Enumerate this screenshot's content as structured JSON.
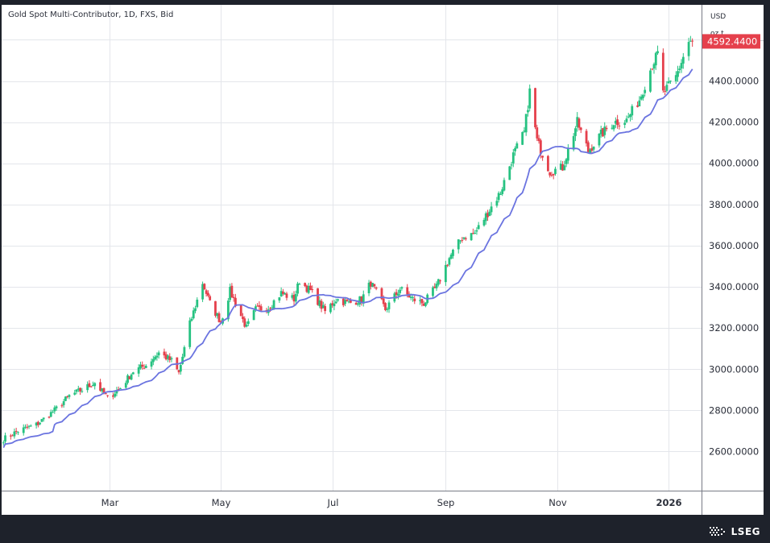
{
  "chart_data": {
    "type": "candlestick",
    "title": "Gold Spot Multi-Contributor, 1D, FXS, Bid",
    "currency": "USD",
    "unit": "oz t",
    "last_price": "4592.4400",
    "last_value": 4592.44,
    "y_ticks": [
      {
        "value": 2600,
        "label": "2600.0000"
      },
      {
        "value": 2800,
        "label": "2800.0000"
      },
      {
        "value": 3000,
        "label": "3000.0000"
      },
      {
        "value": 3200,
        "label": "3200.0000"
      },
      {
        "value": 3400,
        "label": "3400.0000"
      },
      {
        "value": 3600,
        "label": "3600.0000"
      },
      {
        "value": 3800,
        "label": "3800.0000"
      },
      {
        "value": 4000,
        "label": "4000.0000"
      },
      {
        "value": 4200,
        "label": "4200.0000"
      },
      {
        "value": 4400,
        "label": "4400.0000"
      }
    ],
    "ylim": [
      2410,
      4770
    ],
    "x_range": [
      "2025-01-01",
      "2026-01-19"
    ],
    "x_ticks": [
      {
        "date": "2025-03-01",
        "label": "Mar"
      },
      {
        "date": "2025-05-01",
        "label": "May"
      },
      {
        "date": "2025-07-01",
        "label": "Jul"
      },
      {
        "date": "2025-09-01",
        "label": "Sep"
      },
      {
        "date": "2025-11-01",
        "label": "Nov"
      },
      {
        "date": "2026-01-01",
        "label": "2026"
      }
    ],
    "price_path": [
      [
        "2025-01-02",
        2660
      ],
      [
        "2025-01-10",
        2700
      ],
      [
        "2025-01-20",
        2730
      ],
      [
        "2025-01-30",
        2800
      ],
      [
        "2025-02-07",
        2870
      ],
      [
        "2025-02-14",
        2900
      ],
      [
        "2025-02-21",
        2935
      ],
      [
        "2025-02-28",
        2860
      ],
      [
        "2025-03-07",
        2910
      ],
      [
        "2025-03-14",
        2990
      ],
      [
        "2025-03-21",
        3020
      ],
      [
        "2025-03-28",
        3080
      ],
      [
        "2025-04-04",
        3040
      ],
      [
        "2025-04-08",
        2980
      ],
      [
        "2025-04-14",
        3220
      ],
      [
        "2025-04-21",
        3420
      ],
      [
        "2025-04-25",
        3320
      ],
      [
        "2025-05-01",
        3230
      ],
      [
        "2025-05-06",
        3380
      ],
      [
        "2025-05-09",
        3320
      ],
      [
        "2025-05-15",
        3200
      ],
      [
        "2025-05-20",
        3290
      ],
      [
        "2025-05-27",
        3300
      ],
      [
        "2025-06-03",
        3370
      ],
      [
        "2025-06-10",
        3340
      ],
      [
        "2025-06-13",
        3430
      ],
      [
        "2025-06-20",
        3370
      ],
      [
        "2025-06-27",
        3280
      ],
      [
        "2025-07-03",
        3340
      ],
      [
        "2025-07-10",
        3320
      ],
      [
        "2025-07-17",
        3340
      ],
      [
        "2025-07-22",
        3420
      ],
      [
        "2025-07-30",
        3290
      ],
      [
        "2025-08-07",
        3390
      ],
      [
        "2025-08-14",
        3340
      ],
      [
        "2025-08-20",
        3320
      ],
      [
        "2025-08-27",
        3400
      ],
      [
        "2025-09-03",
        3540
      ],
      [
        "2025-09-10",
        3640
      ],
      [
        "2025-09-17",
        3660
      ],
      [
        "2025-09-24",
        3760
      ],
      [
        "2025-10-01",
        3860
      ],
      [
        "2025-10-08",
        4040
      ],
      [
        "2025-10-14",
        4150
      ],
      [
        "2025-10-17",
        4350
      ],
      [
        "2025-10-21",
        4110
      ],
      [
        "2025-10-28",
        3960
      ],
      [
        "2025-11-04",
        3980
      ],
      [
        "2025-11-12",
        4200
      ],
      [
        "2025-11-18",
        4060
      ],
      [
        "2025-11-25",
        4140
      ],
      [
        "2025-12-02",
        4200
      ],
      [
        "2025-12-09",
        4210
      ],
      [
        "2025-12-16",
        4310
      ],
      [
        "2025-12-23",
        4480
      ],
      [
        "2025-12-26",
        4530
      ],
      [
        "2025-12-29",
        4340
      ],
      [
        "2026-01-05",
        4420
      ],
      [
        "2026-01-12",
        4590
      ],
      [
        "2026-01-14",
        4592.44
      ]
    ],
    "series": [
      {
        "type": "candlestick",
        "up_color": "#26c281",
        "down_color": "#e5404c"
      },
      {
        "type": "moving-average",
        "color": "#6b74e0"
      }
    ],
    "grid": true
  },
  "branding": {
    "logo_text": "LSEG"
  }
}
